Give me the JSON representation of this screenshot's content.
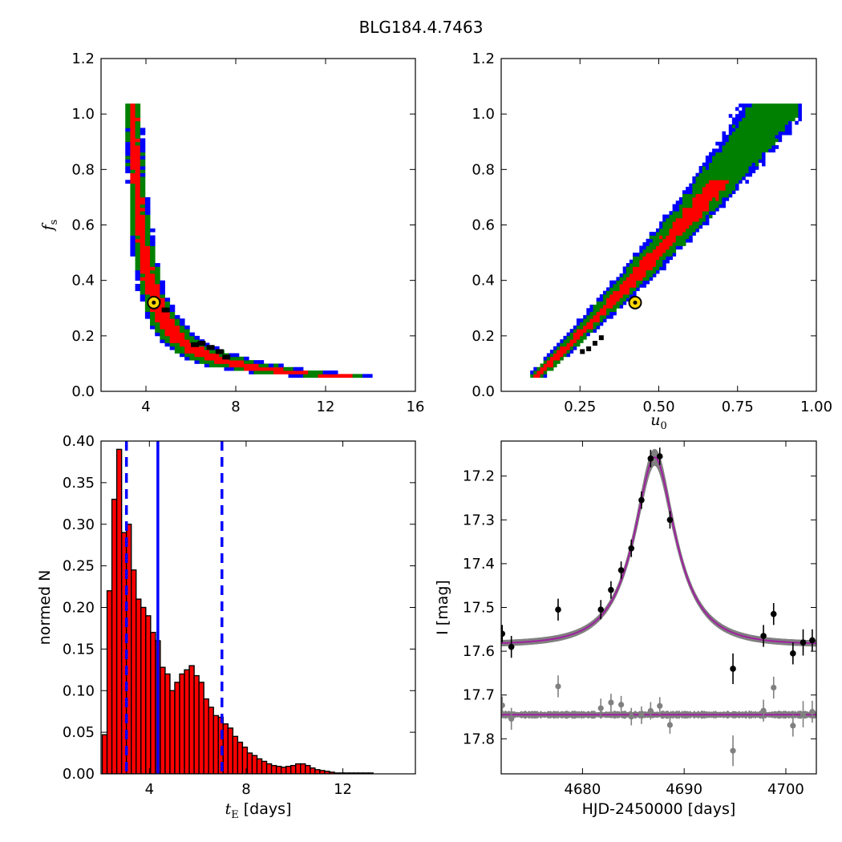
{
  "figure": {
    "title": "BLG184.4.7463"
  },
  "chart_data": [
    {
      "type": "heatmap",
      "panel": "top-left",
      "xlabel": "",
      "ylabel": "f_s",
      "xlim": [
        2,
        16
      ],
      "ylim": [
        0.0,
        1.2
      ],
      "xticks": [
        4,
        8,
        12,
        16
      ],
      "yticks": [
        0.0,
        0.2,
        0.4,
        0.6,
        0.8,
        1.0,
        1.2
      ],
      "best_fit": {
        "x": 4.35,
        "y": 0.32
      },
      "colors": {
        "outer": "#0000ff",
        "middle": "#008000",
        "inner": "#ff0000",
        "best": "#000000",
        "marker": "#ffd700"
      }
    },
    {
      "type": "heatmap",
      "panel": "top-right",
      "xlabel": "u_0",
      "ylabel": "",
      "xlim": [
        0.0,
        1.0
      ],
      "ylim": [
        0.0,
        1.2
      ],
      "xticks": [
        0.25,
        0.5,
        0.75,
        1.0
      ],
      "yticks": [
        0.0,
        0.2,
        0.4,
        0.6,
        0.8,
        1.0,
        1.2
      ],
      "best_fit": {
        "x": 0.425,
        "y": 0.32
      },
      "colors": {
        "outer": "#0000ff",
        "middle": "#008000",
        "inner": "#ff0000",
        "best": "#000000",
        "marker": "#ffd700"
      }
    },
    {
      "type": "bar",
      "panel": "bottom-left",
      "xlabel": "t_E",
      "xlabel_unit": " [days]",
      "ylabel": "normed N",
      "xlim": [
        2,
        15
      ],
      "ylim": [
        0.0,
        0.4
      ],
      "xticks": [
        4,
        8,
        12
      ],
      "yticks": [
        0.0,
        0.05,
        0.1,
        0.15,
        0.2,
        0.25,
        0.3,
        0.35,
        0.4
      ],
      "bin_start": 2.05,
      "bin_width": 0.2,
      "values": [
        0.047,
        0.22,
        0.33,
        0.39,
        0.29,
        0.3,
        0.245,
        0.21,
        0.2,
        0.19,
        0.17,
        0.16,
        0.128,
        0.12,
        0.1,
        0.11,
        0.12,
        0.125,
        0.13,
        0.118,
        0.11,
        0.09,
        0.08,
        0.07,
        0.068,
        0.06,
        0.055,
        0.045,
        0.038,
        0.032,
        0.025,
        0.022,
        0.018,
        0.015,
        0.012,
        0.01,
        0.009,
        0.008,
        0.009,
        0.01,
        0.012,
        0.012,
        0.01,
        0.007,
        0.005,
        0.004,
        0.003,
        0.002,
        0.001,
        0.001,
        0.001,
        0.001,
        0.001,
        0.001,
        0.001,
        0.001
      ],
      "lines": {
        "solid": 4.35,
        "dashed": [
          3.05,
          7.0
        ]
      },
      "colors": {
        "bar": "#ff0000",
        "line": "#0000ff"
      }
    },
    {
      "type": "line",
      "panel": "bottom-right",
      "xlabel": "HJD-2450000 [days]",
      "ylabel": "I [mag]",
      "xlim": [
        4672,
        4703
      ],
      "ylim": [
        17.88,
        17.12
      ],
      "xticks": [
        4680,
        4690,
        4700
      ],
      "yticks": [
        17.2,
        17.3,
        17.4,
        17.5,
        17.6,
        17.7,
        17.8
      ],
      "model": {
        "t0": 4687.1,
        "u0": 0.425,
        "tE": 4.35,
        "fs": 0.32,
        "baseline": 17.585
      },
      "residual_offset": 17.745,
      "points": [
        {
          "x": 4672.1,
          "y": 17.56,
          "err": 0.02
        },
        {
          "x": 4673.0,
          "y": 17.59,
          "err": 0.025
        },
        {
          "x": 4677.6,
          "y": 17.505,
          "err": 0.025
        },
        {
          "x": 4681.8,
          "y": 17.505,
          "err": 0.022
        },
        {
          "x": 4682.8,
          "y": 17.46,
          "err": 0.02
        },
        {
          "x": 4683.8,
          "y": 17.415,
          "err": 0.02
        },
        {
          "x": 4684.8,
          "y": 17.365,
          "err": 0.02
        },
        {
          "x": 4685.8,
          "y": 17.255,
          "err": 0.02
        },
        {
          "x": 4686.7,
          "y": 17.16,
          "err": 0.02
        },
        {
          "x": 4687.6,
          "y": 17.155,
          "err": 0.02
        },
        {
          "x": 4688.6,
          "y": 17.3,
          "err": 0.02
        },
        {
          "x": 4694.8,
          "y": 17.64,
          "err": 0.035
        },
        {
          "x": 4697.8,
          "y": 17.565,
          "err": 0.025
        },
        {
          "x": 4698.8,
          "y": 17.515,
          "err": 0.025
        },
        {
          "x": 4700.7,
          "y": 17.605,
          "err": 0.025
        },
        {
          "x": 4701.7,
          "y": 17.58,
          "err": 0.03
        },
        {
          "x": 4702.6,
          "y": 17.575,
          "err": 0.025
        }
      ],
      "colors": {
        "model": "#a020a0",
        "band": "#808080",
        "points": "#000000",
        "residuals": "#808080"
      }
    }
  ]
}
